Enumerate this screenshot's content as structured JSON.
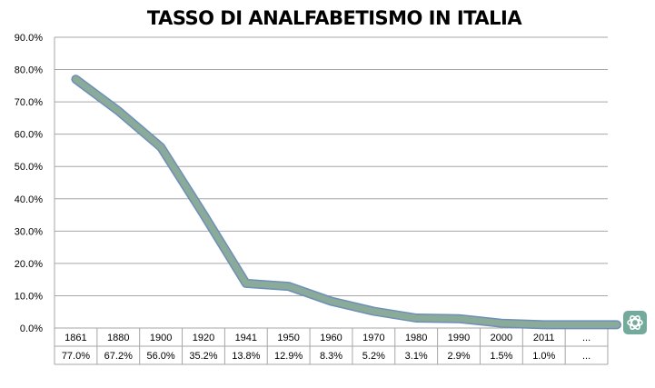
{
  "chart_data": {
    "type": "line",
    "title": "TASSO DI ANALFABETISMO IN ITALIA",
    "xlabel": "",
    "ylabel": "",
    "categories": [
      "1861",
      "1880",
      "1900",
      "1920",
      "1941",
      "1950",
      "1960",
      "1970",
      "1980",
      "1990",
      "2000",
      "2011",
      "..."
    ],
    "values": [
      77.0,
      67.2,
      56.0,
      35.2,
      13.8,
      12.9,
      8.3,
      5.2,
      3.1,
      2.9,
      1.5,
      1.0,
      null
    ],
    "value_labels": [
      "77.0%",
      "67.2%",
      "56.0%",
      "35.2%",
      "13.8%",
      "12.9%",
      "8.3%",
      "5.2%",
      "3.1%",
      "2.9%",
      "1.5%",
      "1.0%",
      "..."
    ],
    "ylim": [
      0,
      90
    ],
    "yticks": [
      "0.0%",
      "10.0%",
      "20.0%",
      "30.0%",
      "40.0%",
      "50.0%",
      "60.0%",
      "70.0%",
      "80.0%",
      "90.0%"
    ],
    "grid": true,
    "data_table": true,
    "line_color": "#8aaa9a",
    "line_edge_color": "#6d8fb8"
  },
  "watermark": {
    "icon": "openai-logo-icon",
    "color": "#74aa9c"
  }
}
